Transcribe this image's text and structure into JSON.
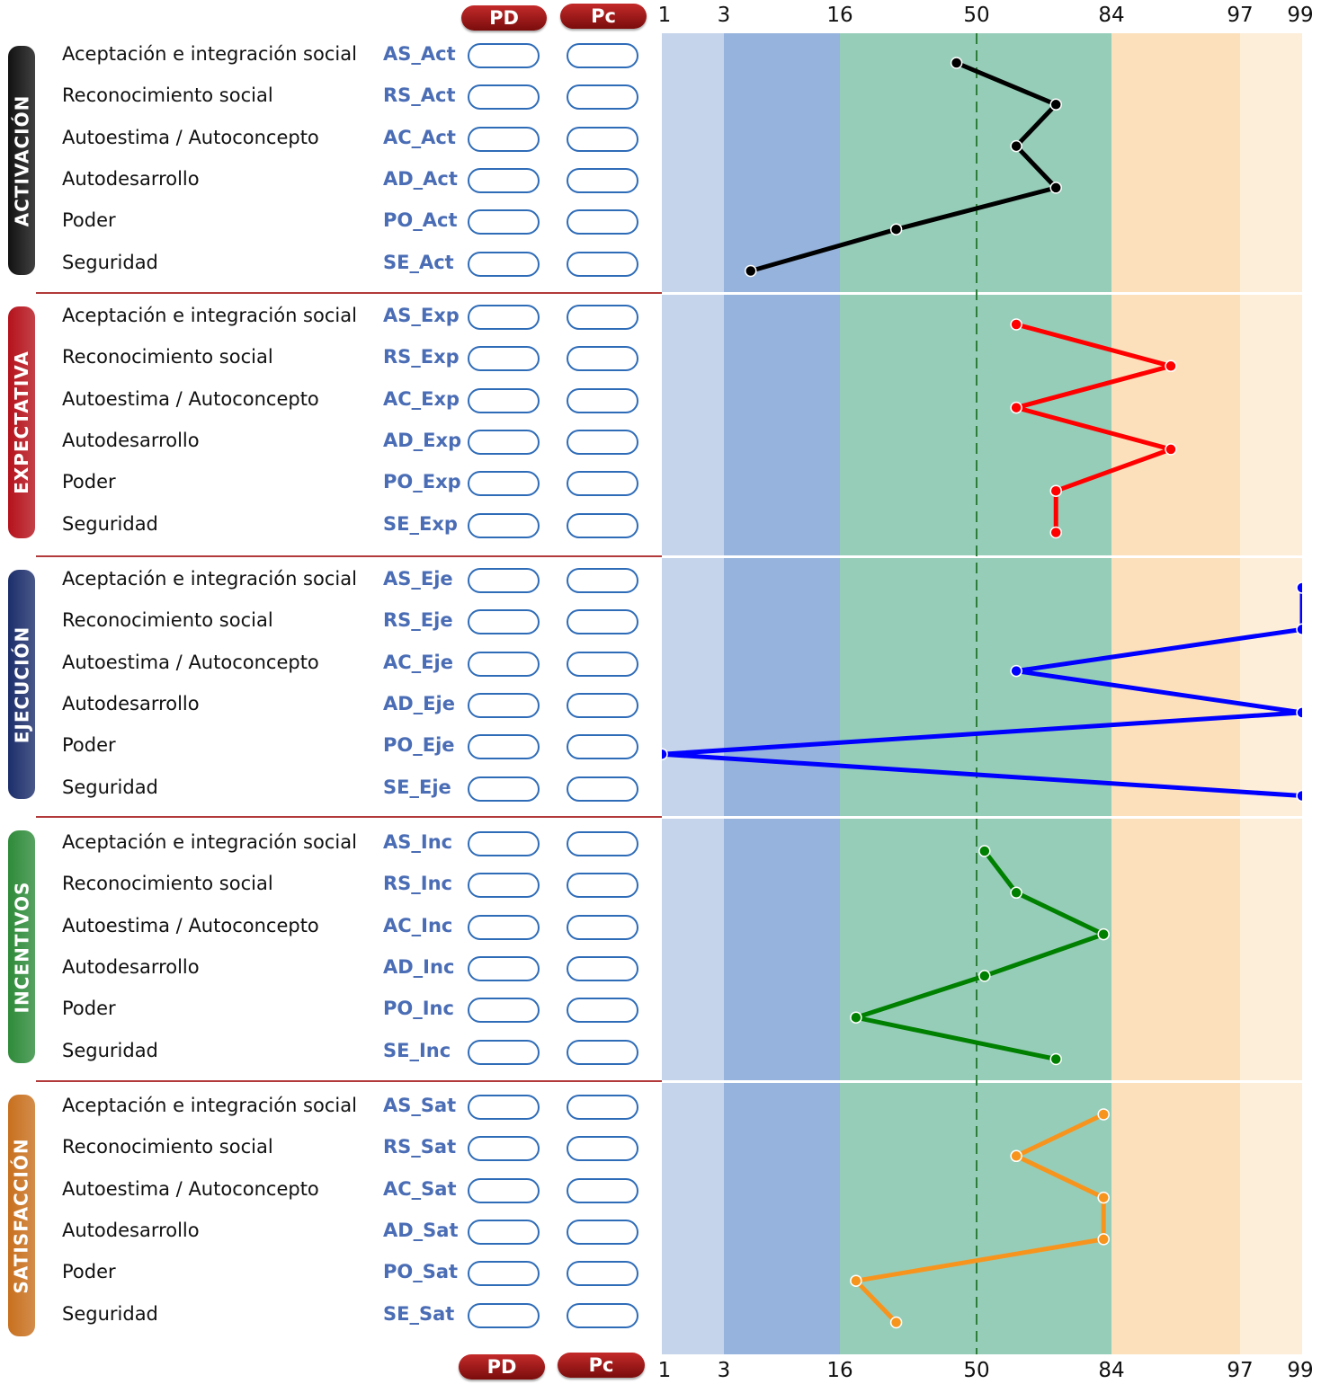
{
  "header": {
    "pd_label": "PD",
    "pc_label": "Pc"
  },
  "footer": {
    "pd_label": "PD",
    "pc_label": "Pc"
  },
  "scale": {
    "ticks": [
      "1",
      "3",
      "16",
      "50",
      "84",
      "97",
      "99"
    ],
    "tick_values": [
      1,
      3,
      16,
      50,
      84,
      97,
      99
    ],
    "band_colors": [
      "#c5d4ea",
      "#95b3dc",
      "#96cdb9",
      "#96cdb9",
      "#fce0bc",
      "#fdeed9"
    ],
    "median_line_color": "#2e7d3a"
  },
  "sections": [
    {
      "title": "ACTIVACIÓN",
      "color": "#111111",
      "rows": [
        {
          "label": "Aceptación e integración social",
          "code": "AS_Act"
        },
        {
          "label": "Reconocimiento social",
          "code": "RS_Act"
        },
        {
          "label": "Autoestima / Autoconcepto",
          "code": "AC_Act"
        },
        {
          "label": "Autodesarrollo",
          "code": "AD_Act"
        },
        {
          "label": "Poder",
          "code": "PO_Act"
        },
        {
          "label": "Seguridad",
          "code": "SE_Act"
        }
      ]
    },
    {
      "title": "EXPECTATIVA",
      "color": "#b5121b",
      "rows": [
        {
          "label": "Aceptación e integración social",
          "code": "AS_Exp"
        },
        {
          "label": "Reconocimiento social",
          "code": "RS_Exp"
        },
        {
          "label": "Autoestima / Autoconcepto",
          "code": "AC_Exp"
        },
        {
          "label": "Autodesarrollo",
          "code": "AD_Exp"
        },
        {
          "label": "Poder",
          "code": "PO_Exp"
        },
        {
          "label": "Seguridad",
          "code": "SE_Exp"
        }
      ]
    },
    {
      "title": "EJECUCIÓN",
      "color": "#1c2e6b",
      "rows": [
        {
          "label": "Aceptación e integración social",
          "code": "AS_Eje"
        },
        {
          "label": "Reconocimiento social",
          "code": "RS_Eje"
        },
        {
          "label": "Autoestima / Autoconcepto",
          "code": "AC_Eje"
        },
        {
          "label": "Autodesarrollo",
          "code": "AD_Eje"
        },
        {
          "label": "Poder",
          "code": "PO_Eje"
        },
        {
          "label": "Seguridad",
          "code": "SE_Eje"
        }
      ]
    },
    {
      "title": "INCENTIVOS",
      "color": "#2e8b3a",
      "rows": [
        {
          "label": "Aceptación e integración social",
          "code": "AS_Inc"
        },
        {
          "label": "Reconocimiento social",
          "code": "RS_Inc"
        },
        {
          "label": "Autoestima / Autoconcepto",
          "code": "AC_Inc"
        },
        {
          "label": "Autodesarrollo",
          "code": "AD_Inc"
        },
        {
          "label": "Poder",
          "code": "PO_Inc"
        },
        {
          "label": "Seguridad",
          "code": "SE_Inc"
        }
      ]
    },
    {
      "title": "SATISFACCIÓN",
      "color": "#c8701e",
      "rows": [
        {
          "label": "Aceptación e integración social",
          "code": "AS_Sat"
        },
        {
          "label": "Reconocimiento social",
          "code": "RS_Sat"
        },
        {
          "label": "Autoestima / Autoconcepto",
          "code": "AC_Sat"
        },
        {
          "label": "Autodesarrollo",
          "code": "AD_Sat"
        },
        {
          "label": "Poder",
          "code": "PO_Sat"
        },
        {
          "label": "Seguridad",
          "code": "SE_Sat"
        }
      ]
    }
  ],
  "chart_data": {
    "type": "line",
    "orientation": "horizontal-profile",
    "x_scale": "percentile",
    "xlim": [
      1,
      99
    ],
    "categories": [
      "Aceptación e integración social",
      "Reconocimiento social",
      "Autoestima / Autoconcepto",
      "Autodesarrollo",
      "Poder",
      "Seguridad"
    ],
    "series": [
      {
        "values": [
          45,
          70,
          60,
          70,
          30,
          6
        ],
        "color": "#000000"
      },
      {
        "values": [
          60,
          90,
          60,
          90,
          70,
          70
        ],
        "color": "#ff0000"
      },
      {
        "values": [
          99,
          99,
          60,
          99,
          1,
          99
        ],
        "color": "#0000ff"
      },
      {
        "values": [
          52,
          60,
          82,
          52,
          20,
          70
        ],
        "color": "#008000"
      },
      {
        "values": [
          82,
          60,
          82,
          82,
          20,
          30
        ],
        "color": "#f7941d"
      }
    ]
  }
}
